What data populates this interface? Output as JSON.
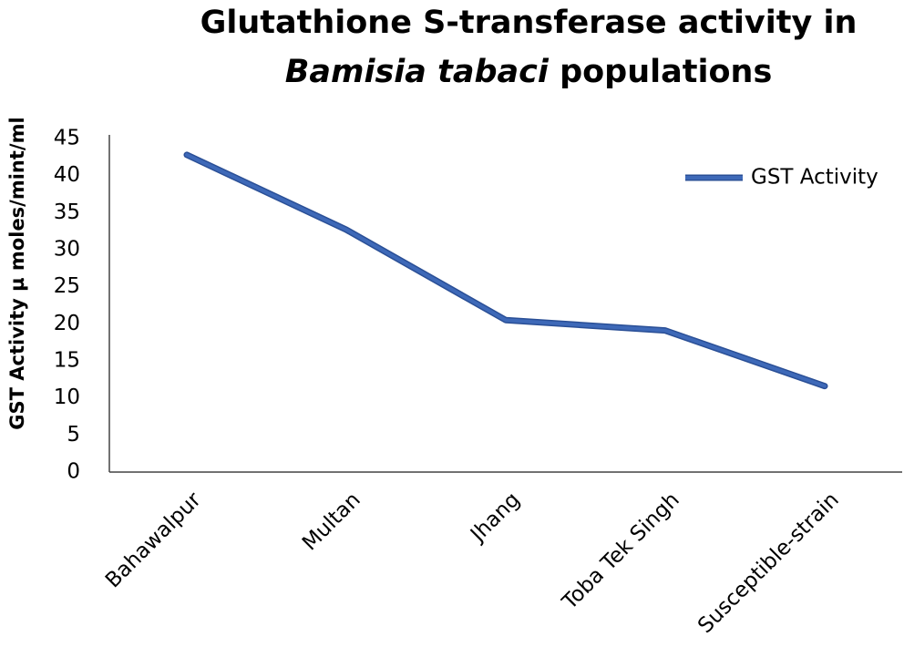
{
  "chart_data": {
    "type": "line",
    "title": [
      "Glutathione S-transferase activity in",
      "Bamisia tabaci",
      "populations"
    ],
    "y_label": "GST Activity µ moles/mint/ml",
    "categories": [
      "Bahawalpur",
      "Multan",
      "Jhang",
      "Toba Tek Singh",
      "Susceptible-strain"
    ],
    "series": [
      {
        "name": "GST Activity",
        "color": "#3e69b8",
        "values": [
          42.8,
          32.7,
          20.5,
          19.1,
          11.6
        ]
      }
    ],
    "ylim": [
      0,
      45
    ],
    "yticks": [
      0,
      5,
      10,
      15,
      20,
      25,
      30,
      35,
      40,
      45
    ],
    "legend": "top-right",
    "grid": false
  }
}
